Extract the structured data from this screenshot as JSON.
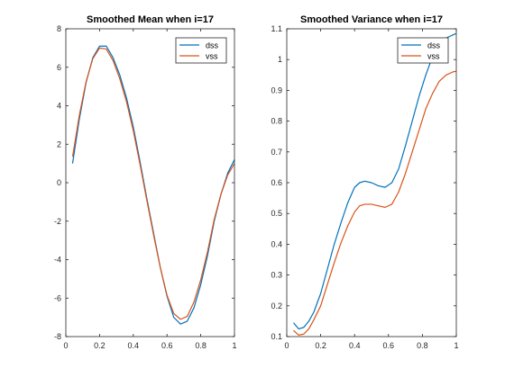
{
  "chart_data": [
    {
      "type": "line",
      "title": "Smoothed Mean when i=17",
      "xlabel": "",
      "ylabel": "",
      "xlim": [
        0,
        1
      ],
      "ylim": [
        -8,
        8
      ],
      "xticks": [
        0,
        0.2,
        0.4,
        0.6,
        0.8,
        1
      ],
      "xtick_labels": [
        "0",
        "0.2",
        "0.4",
        "0.6",
        "0.8",
        "1"
      ],
      "yticks": [
        -8,
        -6,
        -4,
        -2,
        0,
        2,
        4,
        6,
        8
      ],
      "ytick_labels": [
        "-8",
        "-6",
        "-4",
        "-2",
        "0",
        "2",
        "4",
        "6",
        "8"
      ],
      "grid": false,
      "legend": "top-right",
      "series": [
        {
          "name": "dss",
          "color": "#0072BD",
          "x": [
            0.04,
            0.08,
            0.12,
            0.16,
            0.2,
            0.24,
            0.28,
            0.32,
            0.36,
            0.4,
            0.44,
            0.48,
            0.52,
            0.56,
            0.6,
            0.64,
            0.68,
            0.72,
            0.76,
            0.8,
            0.84,
            0.88,
            0.92,
            0.96,
            1.0
          ],
          "y": [
            1.0,
            3.3,
            5.2,
            6.5,
            7.1,
            7.1,
            6.5,
            5.6,
            4.4,
            2.9,
            1.1,
            -0.8,
            -2.6,
            -4.4,
            -5.9,
            -7.0,
            -7.35,
            -7.2,
            -6.5,
            -5.3,
            -3.8,
            -2.0,
            -0.6,
            0.5,
            1.2
          ]
        },
        {
          "name": "vss",
          "color": "#D95319",
          "x": [
            0.04,
            0.08,
            0.12,
            0.16,
            0.2,
            0.24,
            0.28,
            0.32,
            0.36,
            0.4,
            0.44,
            0.48,
            0.52,
            0.56,
            0.6,
            0.64,
            0.68,
            0.72,
            0.76,
            0.8,
            0.84,
            0.88,
            0.92,
            0.96,
            1.0
          ],
          "y": [
            1.35,
            3.5,
            5.25,
            6.45,
            7.0,
            6.95,
            6.35,
            5.4,
            4.2,
            2.7,
            0.95,
            -0.9,
            -2.7,
            -4.4,
            -5.85,
            -6.8,
            -7.1,
            -6.95,
            -6.2,
            -5.05,
            -3.6,
            -1.9,
            -0.6,
            0.4,
            1.0
          ]
        }
      ]
    },
    {
      "type": "line",
      "title": "Smoothed Variance when i=17",
      "xlabel": "",
      "ylabel": "",
      "xlim": [
        0,
        1
      ],
      "ylim": [
        0.1,
        1.1
      ],
      "xticks": [
        0,
        0.2,
        0.4,
        0.6,
        0.8,
        1
      ],
      "xtick_labels": [
        "0",
        "0.2",
        "0.4",
        "0.6",
        "0.8",
        "1"
      ],
      "yticks": [
        0.1,
        0.2,
        0.3,
        0.4,
        0.5,
        0.6,
        0.7,
        0.8,
        0.9,
        1,
        1.1
      ],
      "ytick_labels": [
        "0.1",
        "0.2",
        "0.3",
        "0.4",
        "0.5",
        "0.6",
        "0.7",
        "0.8",
        "0.9",
        "1",
        "1.1"
      ],
      "grid": false,
      "legend": "top-right",
      "series": [
        {
          "name": "dss",
          "color": "#0072BD",
          "x": [
            0.04,
            0.07,
            0.1,
            0.13,
            0.16,
            0.2,
            0.24,
            0.28,
            0.32,
            0.36,
            0.4,
            0.43,
            0.46,
            0.5,
            0.54,
            0.58,
            0.62,
            0.66,
            0.7,
            0.74,
            0.78,
            0.82,
            0.86,
            0.9,
            0.94,
            0.98,
            1.0
          ],
          "y": [
            0.145,
            0.125,
            0.13,
            0.15,
            0.18,
            0.24,
            0.32,
            0.4,
            0.47,
            0.535,
            0.585,
            0.6,
            0.605,
            0.6,
            0.59,
            0.585,
            0.6,
            0.645,
            0.72,
            0.8,
            0.88,
            0.95,
            1.01,
            1.05,
            1.07,
            1.08,
            1.085
          ]
        },
        {
          "name": "vss",
          "color": "#D95319",
          "x": [
            0.04,
            0.07,
            0.1,
            0.13,
            0.16,
            0.2,
            0.24,
            0.28,
            0.32,
            0.36,
            0.4,
            0.43,
            0.46,
            0.5,
            0.54,
            0.58,
            0.62,
            0.66,
            0.7,
            0.74,
            0.78,
            0.82,
            0.86,
            0.9,
            0.94,
            0.98,
            1.0
          ],
          "y": [
            0.12,
            0.105,
            0.108,
            0.125,
            0.155,
            0.2,
            0.27,
            0.34,
            0.405,
            0.46,
            0.505,
            0.525,
            0.53,
            0.53,
            0.525,
            0.52,
            0.53,
            0.57,
            0.63,
            0.7,
            0.77,
            0.84,
            0.89,
            0.93,
            0.95,
            0.96,
            0.962
          ]
        }
      ]
    }
  ]
}
